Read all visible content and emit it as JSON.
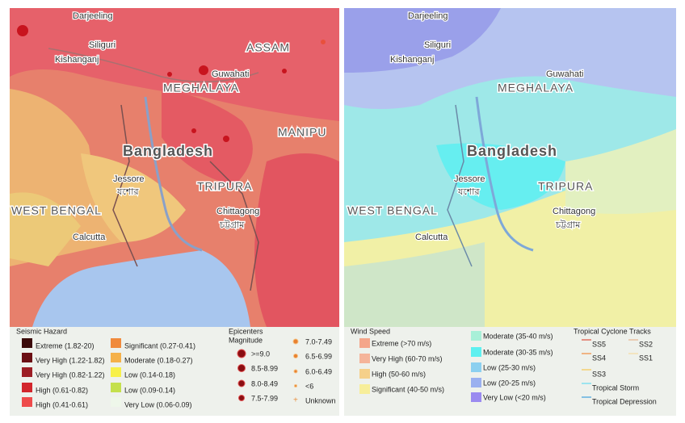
{
  "seismic_map": {
    "labels": [
      "Darjeeling",
      "Siliguri",
      "Kishanganj",
      "ASSAM",
      "Guwahati",
      "MEGHALAYA",
      "Bangladesh",
      "MANIPU",
      "Jessore",
      "যশোর",
      "TRIPURA",
      "WEST BENGAL",
      "Chittagong",
      "চট্টগ্রাম",
      "Calcutta"
    ]
  },
  "seismic_legend": {
    "title": "Seismic Hazard",
    "items": [
      {
        "label": "Extreme (1.82-20)",
        "color": "#3b0a0a"
      },
      {
        "label": "Very High (1.22-1.82)",
        "color": "#6b0f14"
      },
      {
        "label": "Very High (0.82-1.22)",
        "color": "#9c1e25"
      },
      {
        "label": "High (0.61-0.82)",
        "color": "#d2262c"
      },
      {
        "label": "High (0.41-0.61)",
        "color": "#ee4b4b"
      },
      {
        "label": "Significant (0.27-0.41)",
        "color": "#f08a3c"
      },
      {
        "label": "Moderate (0.18-0.27)",
        "color": "#f5b14a"
      },
      {
        "label": "Low (0.14-0.18)",
        "color": "#f7f04a"
      },
      {
        "label": "Low (0.09-0.14)",
        "color": "#c4e04d"
      },
      {
        "label": "Very Low (0.06-0.09)",
        "color": "#eef7ea"
      }
    ]
  },
  "epicenters_legend": {
    "title": "Epicenters",
    "subtitle": "Magnitude",
    "items": [
      ">=9.0",
      "8.5-8.99",
      "8.0-8.49",
      "7.5-7.99",
      "7.0-7.49",
      "6.5-6.99",
      "6.0-6.49",
      "<6",
      "Unknown"
    ]
  },
  "wind_map": {
    "labels": [
      "Darjeeling",
      "Siliguri",
      "Kishanganj",
      "Guwahati",
      "MEGHALAYA",
      "Bangladesh",
      "Jessore",
      "যশোর",
      "TRIPURA",
      "WEST BENGAL",
      "Chittagong",
      "চট্টগ্রাম",
      "Calcutta"
    ]
  },
  "wind_legend": {
    "title": "Wind Speed",
    "items": [
      {
        "label": "Extreme (>70 m/s)",
        "color": "#f4a58a"
      },
      {
        "label": "Very High (60-70 m/s)",
        "color": "#f5b49a"
      },
      {
        "label": "High (50-60 m/s)",
        "color": "#f5d08a"
      },
      {
        "label": "Significant (40-50 m/s)",
        "color": "#f7ee9a"
      },
      {
        "label": "Moderate (35-40 m/s)",
        "color": "#a8f0d8"
      },
      {
        "label": "Moderate (30-35 m/s)",
        "color": "#5ef0f0"
      },
      {
        "label": "Low (25-30 m/s)",
        "color": "#8cd0f0"
      },
      {
        "label": "Low (20-25 m/s)",
        "color": "#9ab0f0"
      },
      {
        "label": "Very Low (<20 m/s)",
        "color": "#9a8af0"
      }
    ]
  },
  "cyclone_legend": {
    "title": "Tropical Cyclone Tracks",
    "items": [
      {
        "label": "SS5",
        "color": "#e07060"
      },
      {
        "label": "SS2",
        "color": "#e8c0a0"
      },
      {
        "label": "SS4",
        "color": "#f0a060"
      },
      {
        "label": "SS1",
        "color": "#f5e0b0"
      },
      {
        "label": "SS3",
        "color": "#f5d070"
      },
      {
        "label": "Tropical Storm",
        "color": "#80e0f0"
      },
      {
        "label": "Tropical Depression",
        "color": "#60b0e0"
      }
    ]
  }
}
